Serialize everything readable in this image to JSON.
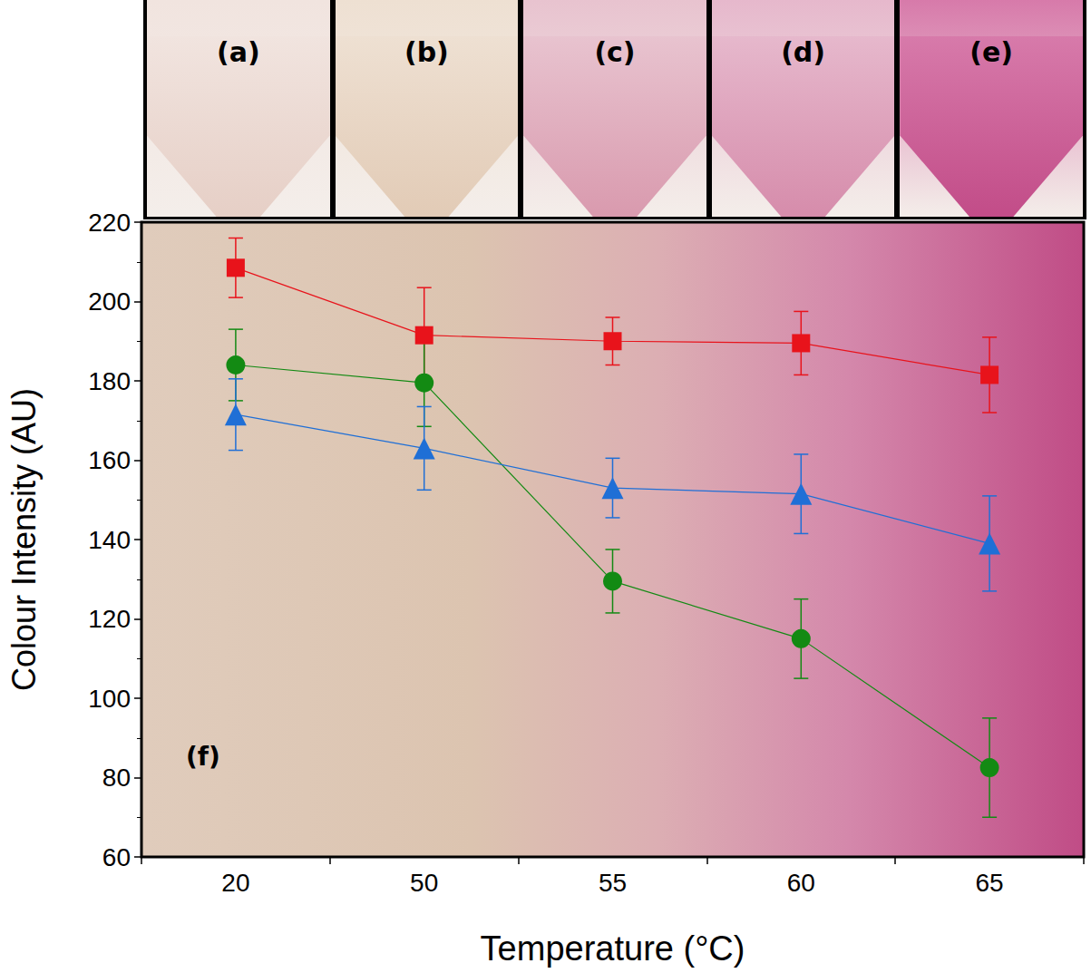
{
  "chart_data": {
    "type": "line",
    "panels": [
      "(a)",
      "(b)",
      "(c)",
      "(d)",
      "(e)"
    ],
    "panel_label": "(f)",
    "x_label": "Temperature (°C)",
    "y_label": "Colour Intensity (AU)",
    "categories": [
      "20",
      "50",
      "55",
      "60",
      "65"
    ],
    "ylim": [
      60,
      220
    ],
    "yticks": [
      60,
      80,
      100,
      120,
      140,
      160,
      180,
      200,
      220
    ],
    "series": [
      {
        "color": "#e8131b",
        "marker": "square",
        "values": [
          208.5,
          191.5,
          190,
          189.5,
          181.5
        ],
        "errors": [
          7.5,
          12,
          6,
          8,
          9.5
        ]
      },
      {
        "color": "#138a13",
        "marker": "circle",
        "values": [
          184,
          179.5,
          129.5,
          115,
          82.5
        ],
        "errors": [
          9,
          11,
          8,
          10,
          12.5
        ]
      },
      {
        "color": "#1f6fd6",
        "marker": "triangle",
        "values": [
          171.5,
          163,
          153,
          151.5,
          139
        ],
        "errors": [
          9,
          10.5,
          7.5,
          10,
          12
        ]
      }
    ]
  }
}
